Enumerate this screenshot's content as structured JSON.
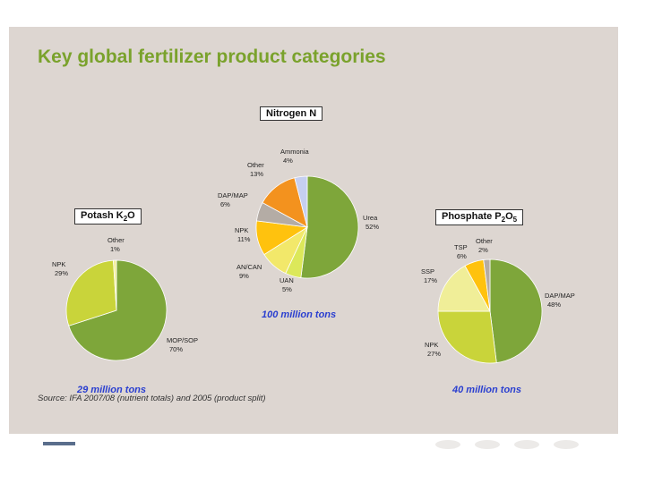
{
  "title": "Key global fertilizer product categories",
  "source": "Source: IFA 2007/08 (nutrient totals) and 2005 (product split)",
  "chart_data": [
    {
      "type": "pie",
      "title_main": "Nitrogen N",
      "total": "100 million tons",
      "slices": [
        {
          "label": "Urea",
          "value": 52,
          "pct": "52%",
          "color": "#7ea63a"
        },
        {
          "label": "UAN",
          "value": 5,
          "pct": "5%",
          "color": "#dce85a"
        },
        {
          "label": "AN/CAN",
          "value": 9,
          "pct": "9%",
          "color": "#f2e86a"
        },
        {
          "label": "NPK",
          "value": 11,
          "pct": "11%",
          "color": "#ffc20e"
        },
        {
          "label": "DAP/MAP",
          "value": 6,
          "pct": "6%",
          "color": "#b4aca5"
        },
        {
          "label": "Other",
          "value": 13,
          "pct": "13%",
          "color": "#f3921e"
        },
        {
          "label": "Ammonia",
          "value": 4,
          "pct": "4%",
          "color": "#c6cff0"
        }
      ]
    },
    {
      "type": "pie",
      "title_main": "Potash K",
      "title_sub": "2",
      "title_end": "O",
      "total": "29 million tons",
      "slices": [
        {
          "label": "MOP/SOP",
          "value": 70,
          "pct": "70%",
          "color": "#7ea63a"
        },
        {
          "label": "NPK",
          "value": 29,
          "pct": "29%",
          "color": "#c9d43a"
        },
        {
          "label": "Other",
          "value": 1,
          "pct": "1%",
          "color": "#f2ee9a"
        }
      ]
    },
    {
      "type": "pie",
      "title_main": "Phosphate P",
      "title_sub": "2",
      "title_mid": "O",
      "title_sub2": "5",
      "total": "40 million tons",
      "slices": [
        {
          "label": "DAP/MAP",
          "value": 48,
          "pct": "48%",
          "color": "#7ea63a"
        },
        {
          "label": "NPK",
          "value": 27,
          "pct": "27%",
          "color": "#c9d43a"
        },
        {
          "label": "SSP",
          "value": 17,
          "pct": "17%",
          "color": "#f0ee98"
        },
        {
          "label": "TSP",
          "value": 6,
          "pct": "6%",
          "color": "#ffc20e"
        },
        {
          "label": "Other",
          "value": 2,
          "pct": "2%",
          "color": "#b4aca5"
        }
      ]
    }
  ]
}
